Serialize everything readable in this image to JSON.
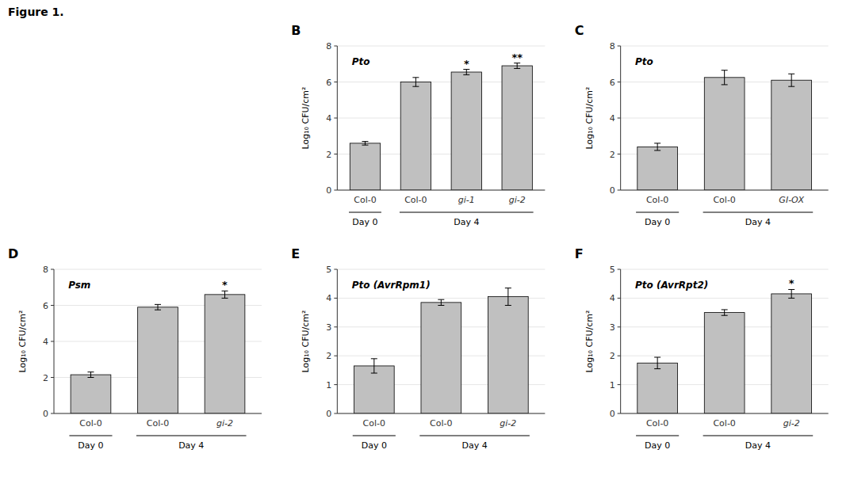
{
  "title": "Figure 1.",
  "chart_data": [
    {
      "type": "bar",
      "annotations": [
        "B"
      ],
      "title": "Pto",
      "color": "#C0C0C0",
      "categories": [
        "Col-0",
        "Col-0",
        "gi-1",
        "gi-2"
      ],
      "groups": [
        "Day 0",
        "Day 4",
        "Day 4",
        "Day 4"
      ],
      "values": [
        2.6,
        6.0,
        6.55,
        6.9
      ],
      "errors": [
        0.1,
        0.25,
        0.15,
        0.15
      ],
      "significance": [
        null,
        null,
        "*",
        "**"
      ],
      "ylabel": "Log₁₀ CFU/cm²",
      "ylim": [
        0,
        8
      ],
      "yticks": [
        0,
        2,
        4,
        6,
        8
      ]
    },
    {
      "type": "bar",
      "annotations": [
        "C"
      ],
      "title": "Pto",
      "color": "#C0C0C0",
      "categories": [
        "Col-0",
        "Col-0",
        "GI-OX"
      ],
      "groups": [
        "Day 0",
        "Day 4",
        "Day 4"
      ],
      "values": [
        2.4,
        6.25,
        6.1
      ],
      "errors": [
        0.2,
        0.4,
        0.35
      ],
      "significance": [
        null,
        null,
        null
      ],
      "ylabel": "Log₁₀ CFU/cm²",
      "ylim": [
        0,
        8
      ],
      "yticks": [
        0,
        2,
        4,
        6,
        8
      ]
    },
    {
      "type": "bar",
      "annotations": [
        "D"
      ],
      "title": "Psm",
      "color": "#C0C0C0",
      "categories": [
        "Col-0",
        "Col-0",
        "gi-2"
      ],
      "groups": [
        "Day 0",
        "Day 4",
        "Day 4"
      ],
      "values": [
        2.15,
        5.9,
        6.6
      ],
      "errors": [
        0.15,
        0.15,
        0.2
      ],
      "significance": [
        null,
        null,
        "*"
      ],
      "ylabel": "Log₁₀ CFU/cm²",
      "ylim": [
        0,
        8
      ],
      "yticks": [
        0,
        2,
        4,
        6,
        8
      ]
    },
    {
      "type": "bar",
      "annotations": [
        "E"
      ],
      "title": "Pto (AvrRpm1)",
      "color": "#C0C0C0",
      "categories": [
        "Col-0",
        "Col-0",
        "gi-2"
      ],
      "groups": [
        "Day 0",
        "Day 4",
        "Day 4"
      ],
      "values": [
        1.65,
        3.85,
        4.05
      ],
      "errors": [
        0.25,
        0.1,
        0.3
      ],
      "significance": [
        null,
        null,
        null
      ],
      "ylabel": "Log₁₀ CFU/cm²",
      "ylim": [
        0,
        5
      ],
      "yticks": [
        0,
        1,
        2,
        3,
        4,
        5
      ]
    },
    {
      "type": "bar",
      "annotations": [
        "F"
      ],
      "title": "Pto (AvrRpt2)",
      "color": "#C0C0C0",
      "categories": [
        "Col-0",
        "Col-0",
        "gi-2"
      ],
      "groups": [
        "Day 0",
        "Day 4",
        "Day 4"
      ],
      "values": [
        1.75,
        3.5,
        4.15
      ],
      "errors": [
        0.2,
        0.1,
        0.15
      ],
      "significance": [
        null,
        null,
        "*"
      ],
      "ylabel": "Log₁₀ CFU/cm²",
      "ylim": [
        0,
        5
      ],
      "yticks": [
        0,
        1,
        2,
        3,
        4,
        5
      ]
    }
  ]
}
